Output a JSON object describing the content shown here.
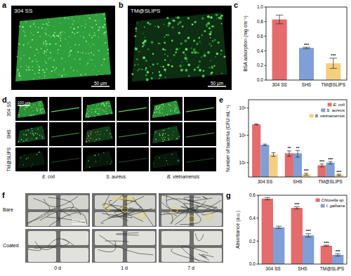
{
  "panel_letters": [
    "a",
    "b",
    "c",
    "d",
    "e",
    "f",
    "g"
  ],
  "image_panels": {
    "a": {
      "label": "304 SS",
      "scale_bar": "50 μm"
    },
    "b": {
      "label": "TM@SLIPS",
      "scale_bar": "50 μm"
    },
    "d": {
      "rows": [
        "304 SS",
        "SHS",
        "TM@SLIPS"
      ],
      "columns": [
        "E. coli",
        "S. aureus",
        "B. vietnamensis"
      ],
      "scale_bar": "100 μm"
    },
    "f": {
      "rows": [
        "Bare",
        "Coated"
      ],
      "columns": [
        "0 d",
        "1 d",
        "7 d"
      ],
      "annotation": "Microalgae",
      "scale_bar": "500 μm"
    }
  },
  "chart_data": [
    {
      "type": "bar",
      "ylabel": "BSA adsorption (mg cm⁻²)",
      "categories": [
        "304 SS",
        "SHS",
        "TM@SLIPS"
      ],
      "values": [
        0.83,
        0.44,
        0.23
      ],
      "errors": [
        0.06,
        0.01,
        0.07
      ],
      "significance": [
        null,
        "***",
        "***"
      ],
      "colors": [
        "#e46c6c",
        "#7f9fd6",
        "#f6cf7e"
      ],
      "ylim": [
        0,
        1
      ],
      "yticks": [
        {
          "value": 0,
          "label": "0.0"
        },
        0.2,
        0.4,
        0.6,
        0.8,
        {
          "value": 1,
          "label": "1.0"
        }
      ]
    },
    {
      "type": "bar",
      "ylabel": "Number of bacteria (CFU mL⁻¹)",
      "categories": [
        "304 SS",
        "SHS",
        "TM@SLIPS"
      ],
      "log": "y",
      "ylim": [
        3,
        2000
      ],
      "yticks": [
        {
          "value": 10,
          "label": "10¹"
        },
        {
          "value": 100,
          "label": "10²"
        },
        {
          "value": 1000,
          "label": "10³"
        }
      ],
      "legend": "upper right",
      "series": [
        {
          "name": "E. coli",
          "color": "#e46c6c",
          "values": [
            250,
            22,
            8
          ],
          "errors": [
            10,
            5,
            1
          ],
          "significance": [
            null,
            "**",
            "***"
          ]
        },
        {
          "name": "S. aureus",
          "color": "#7f9fd6",
          "values": [
            45,
            22,
            10
          ],
          "errors": [
            3,
            6,
            1
          ],
          "significance": [
            null,
            "**",
            "***"
          ]
        },
        {
          "name": "B. vietnamensis",
          "color": "#f6cf7e",
          "values": [
            20,
            3.8,
            3.6
          ],
          "errors": [
            3,
            0.3,
            0.2
          ],
          "significance": [
            null,
            "***",
            "***"
          ]
        }
      ]
    },
    {
      "type": "bar",
      "ylabel": "Absorbance (a.u.)",
      "categories": [
        "304 SS",
        "SHS",
        "TM@SLIPS"
      ],
      "ylim": [
        0,
        0.6
      ],
      "yticks": [
        {
          "value": 0,
          "label": "0.0"
        },
        0.2,
        0.4,
        0.6
      ],
      "legend": "upper right",
      "series": [
        {
          "name": "Chlorella sp.",
          "color": "#e46c6c",
          "values": [
            0.57,
            0.49,
            0.16
          ],
          "errors": [
            0.01,
            0.01,
            0.005
          ],
          "significance": [
            null,
            "***",
            "***"
          ]
        },
        {
          "name": "I. galbana",
          "color": "#7f9fd6",
          "values": [
            0.32,
            0.25,
            0.08
          ],
          "errors": [
            0.01,
            0.015,
            0.01
          ],
          "significance": [
            null,
            "***",
            "***"
          ]
        }
      ]
    }
  ]
}
